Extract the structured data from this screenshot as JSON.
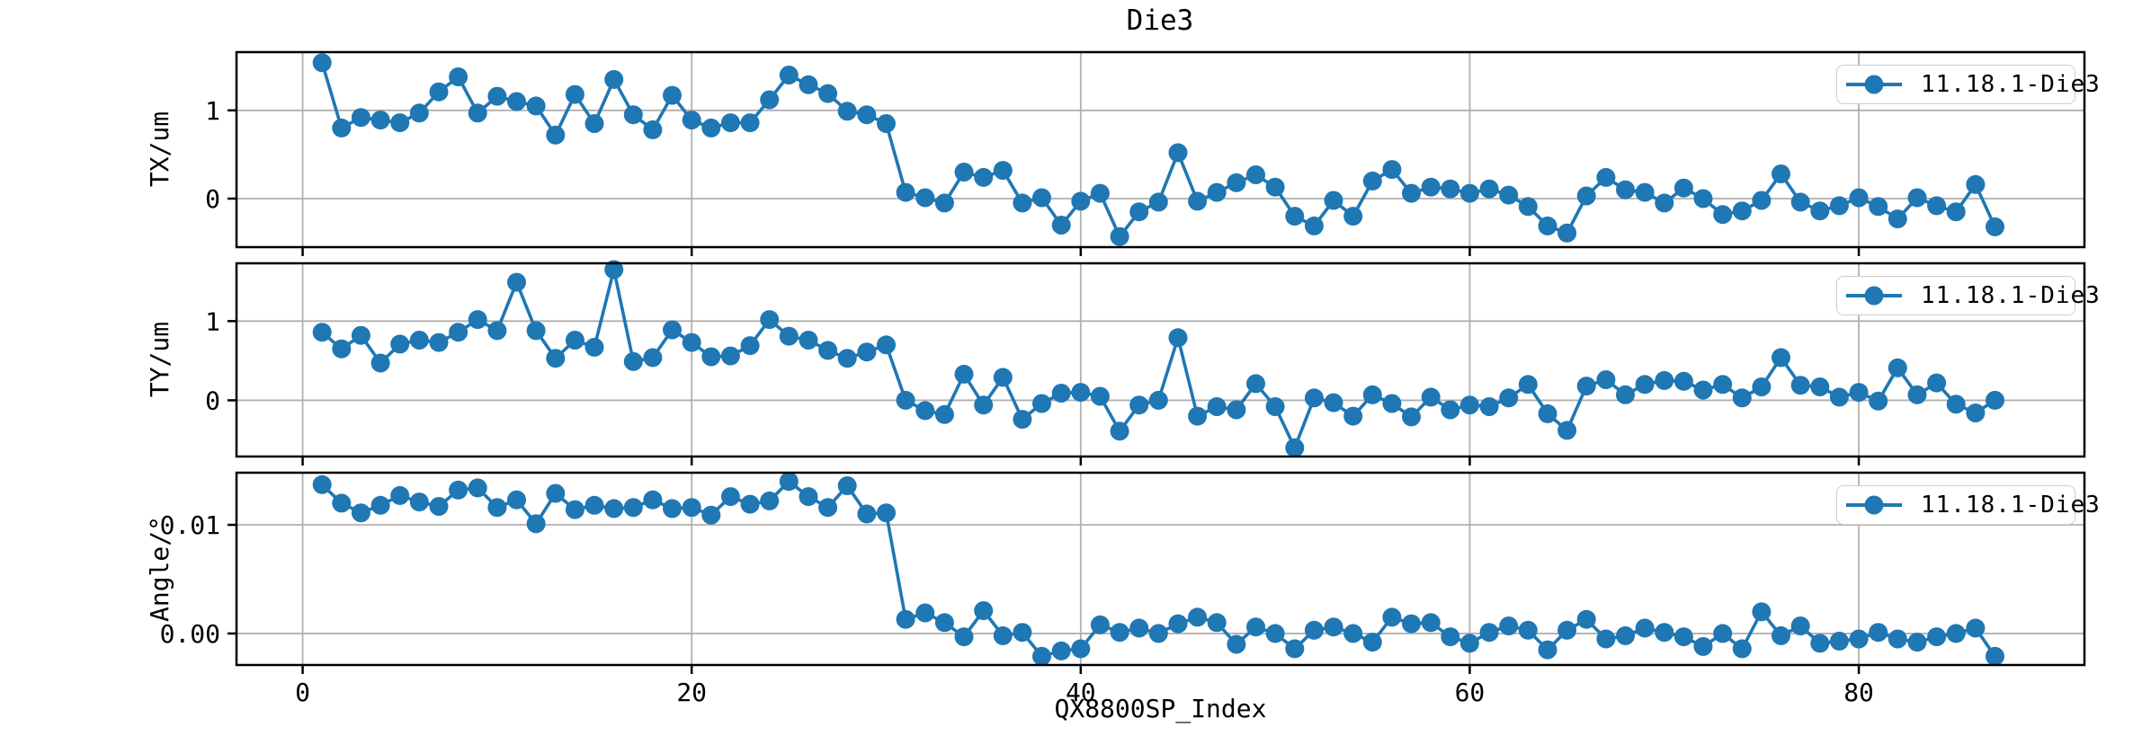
{
  "figure": {
    "title": "Die3",
    "legend_label": "11.18.1-Die3",
    "background": "#ffffff",
    "series_color": "#1f77b4",
    "grid_color": "#b0b0b0",
    "spine_color": "#000000",
    "text_color": "#000000"
  },
  "chart_data": {
    "type": "line",
    "title": "Die3",
    "legend_position": "upper right",
    "grid": true,
    "x_axis": {
      "label": "QX8800SP_Index",
      "x_start": 1,
      "x_step": 1,
      "count": 87,
      "ticks": [
        0,
        20,
        40,
        60,
        80
      ],
      "tick_labels": [
        "0",
        "20",
        "40",
        "60",
        "80"
      ],
      "xlim": [
        -3.4,
        91.6
      ]
    },
    "series_name": "11.18.1-Die3",
    "color": "#1f77b4",
    "subplots": [
      {
        "name": "TX",
        "ylabel": "TX/um",
        "yticks": [
          0,
          1
        ],
        "ytick_labels": [
          "0",
          "1"
        ],
        "ylim": [
          -0.55,
          1.66
        ],
        "values": [
          1.54,
          0.8,
          0.92,
          0.89,
          0.86,
          0.97,
          1.21,
          1.38,
          0.97,
          1.16,
          1.1,
          1.05,
          0.72,
          1.18,
          0.85,
          1.35,
          0.95,
          0.78,
          1.17,
          0.89,
          0.8,
          0.86,
          0.86,
          1.12,
          1.4,
          1.29,
          1.19,
          0.99,
          0.95,
          0.85,
          0.07,
          0.01,
          -0.05,
          0.3,
          0.24,
          0.32,
          -0.05,
          0.01,
          -0.3,
          -0.03,
          0.06,
          -0.43,
          -0.15,
          -0.04,
          0.52,
          -0.03,
          0.07,
          0.18,
          0.27,
          0.13,
          -0.2,
          -0.31,
          -0.02,
          -0.2,
          0.2,
          0.33,
          0.06,
          0.13,
          0.11,
          0.06,
          0.11,
          0.04,
          -0.09,
          -0.31,
          -0.39,
          0.03,
          0.24,
          0.1,
          0.07,
          -0.05,
          0.12,
          0,
          -0.18,
          -0.14,
          -0.02,
          0.28,
          -0.04,
          -0.14,
          -0.08,
          0.01,
          -0.09,
          -0.23,
          0.01,
          -0.08,
          -0.15,
          0.16,
          -0.32
        ]
      },
      {
        "name": "TY",
        "ylabel": "TY/um",
        "yticks": [
          0,
          1
        ],
        "ytick_labels": [
          "0",
          "1"
        ],
        "ylim": [
          -0.71,
          1.73
        ],
        "values": [
          0.86,
          0.65,
          0.82,
          0.47,
          0.71,
          0.76,
          0.73,
          0.86,
          1.02,
          0.88,
          1.49,
          0.88,
          0.53,
          0.76,
          0.67,
          1.65,
          0.49,
          0.54,
          0.89,
          0.73,
          0.55,
          0.56,
          0.69,
          1.02,
          0.81,
          0.76,
          0.63,
          0.53,
          0.61,
          0.7,
          0,
          -0.13,
          -0.18,
          0.33,
          -0.06,
          0.29,
          -0.24,
          -0.04,
          0.09,
          0.1,
          0.05,
          -0.39,
          -0.06,
          0,
          0.79,
          -0.2,
          -0.08,
          -0.12,
          0.21,
          -0.08,
          -0.6,
          0.03,
          -0.03,
          -0.2,
          0.07,
          -0.04,
          -0.21,
          0.04,
          -0.12,
          -0.06,
          -0.08,
          0.03,
          0.2,
          -0.17,
          -0.38,
          0.18,
          0.26,
          0.07,
          0.2,
          0.25,
          0.24,
          0.13,
          0.2,
          0.03,
          0.17,
          0.54,
          0.19,
          0.17,
          0.04,
          0.1,
          -0.01,
          0.41,
          0.07,
          0.22,
          -0.05,
          -0.16,
          0
        ]
      },
      {
        "name": "Angle",
        "ylabel": "Angle/°",
        "yticks": [
          0,
          0.01
        ],
        "ytick_labels": [
          "0.00",
          "0.01"
        ],
        "ylim": [
          -0.0029,
          0.0148
        ],
        "values": [
          0.0137,
          0.012,
          0.0111,
          0.0118,
          0.0127,
          0.0121,
          0.0117,
          0.0132,
          0.0134,
          0.0116,
          0.0123,
          0.0101,
          0.0129,
          0.0114,
          0.0118,
          0.0115,
          0.0116,
          0.0123,
          0.0115,
          0.0116,
          0.0109,
          0.0126,
          0.0119,
          0.0122,
          0.014,
          0.0126,
          0.0116,
          0.0136,
          0.011,
          0.0111,
          0.0013,
          0.0019,
          0.001,
          -0.0003,
          0.0021,
          -0.0002,
          0.0001,
          -0.0021,
          -0.0016,
          -0.0014,
          0.0008,
          0.0001,
          0.0005,
          0,
          0.0009,
          0.0015,
          0.001,
          -0.001,
          0.0006,
          0,
          -0.0014,
          0.0003,
          0.0006,
          0,
          -0.0008,
          0.0015,
          0.0009,
          0.001,
          -0.0003,
          -0.0009,
          0.0001,
          0.0007,
          0.0003,
          -0.0015,
          0.0003,
          0.0013,
          -0.0005,
          -0.0002,
          0.0005,
          0.0001,
          -0.0003,
          -0.0012,
          0,
          -0.0014,
          0.002,
          -0.0002,
          0.0007,
          -0.0009,
          -0.0007,
          -0.0005,
          0.0001,
          -0.0005,
          -0.0008,
          -0.0003,
          0,
          0.0005,
          -0.0021
        ]
      }
    ]
  }
}
